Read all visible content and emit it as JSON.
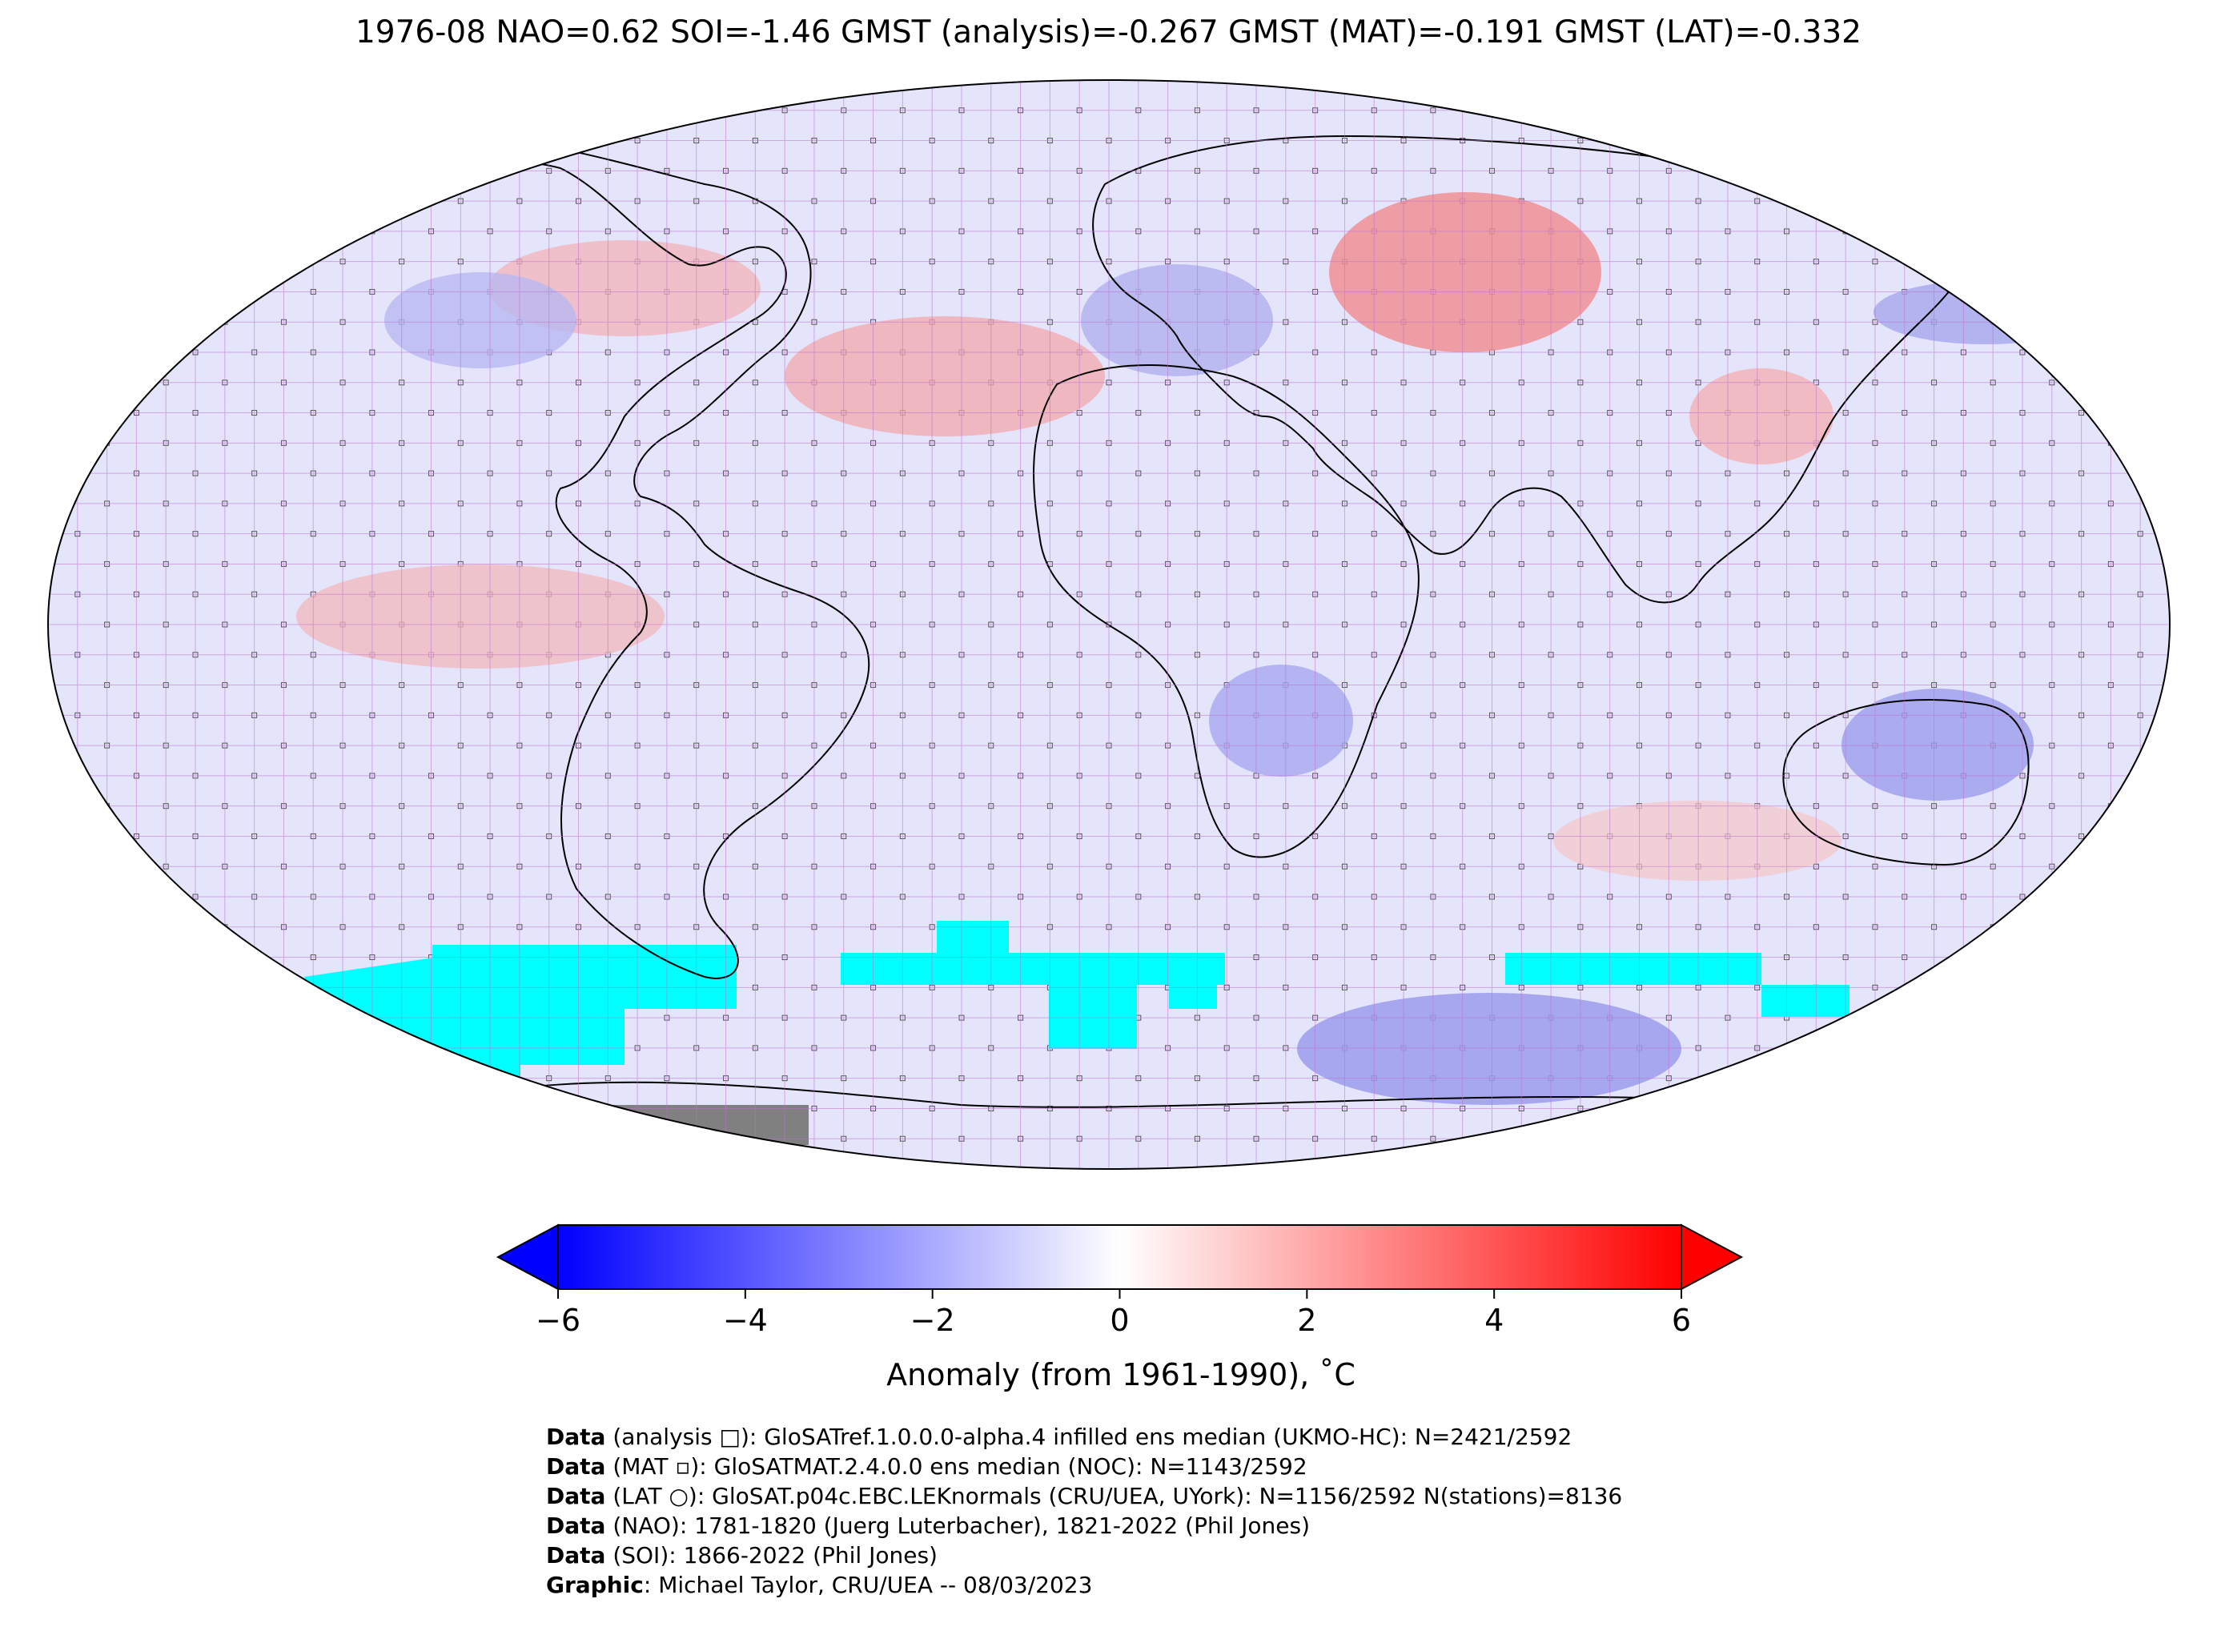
{
  "title": "1976-08 NAO=0.62 SOI=-1.46 GMST (analysis)=-0.267 GMST (MAT)=-0.191 GMST (LAT)=-0.332",
  "colorbar": {
    "label": "Anomaly (from 1961-1990), ˚C",
    "ticks": [
      "−6",
      "−4",
      "−2",
      "0",
      "2",
      "4",
      "6"
    ],
    "tick_values": [
      -6,
      -4,
      -2,
      0,
      2,
      4,
      6
    ],
    "range": [
      -6,
      6
    ],
    "colors": {
      "min": "#0000ff",
      "mid": "#ffffff",
      "max": "#ff0000"
    }
  },
  "map": {
    "projection": "Robinson",
    "grid": "5x5 degree",
    "sea_ice_color": "#00ffff",
    "no_data_color": "#808080"
  },
  "credits": [
    {
      "bold": "Data",
      "text": " (analysis □): GloSATref.1.0.0.0-alpha.4 infilled ens median (UKMO-HC): N=2421/2592"
    },
    {
      "bold": "Data",
      "text": " (MAT ▫): GloSATMAT.2.4.0.0 ens median (NOC): N=1143/2592"
    },
    {
      "bold": "Data",
      "text": " (LAT ○): GloSAT.p04c.EBC.LEKnormals (CRU/UEA, UYork): N=1156/2592 N(stations)=8136"
    },
    {
      "bold": "Data",
      "text": " (NAO): 1781-1820 (Juerg Luterbacher), 1821-2022 (Phil Jones)"
    },
    {
      "bold": "Data",
      "text": " (SOI): 1866-2022 (Phil Jones)"
    },
    {
      "bold": "Graphic",
      "text": ": Michael Taylor, CRU/UEA -- 08/03/2023"
    }
  ]
}
